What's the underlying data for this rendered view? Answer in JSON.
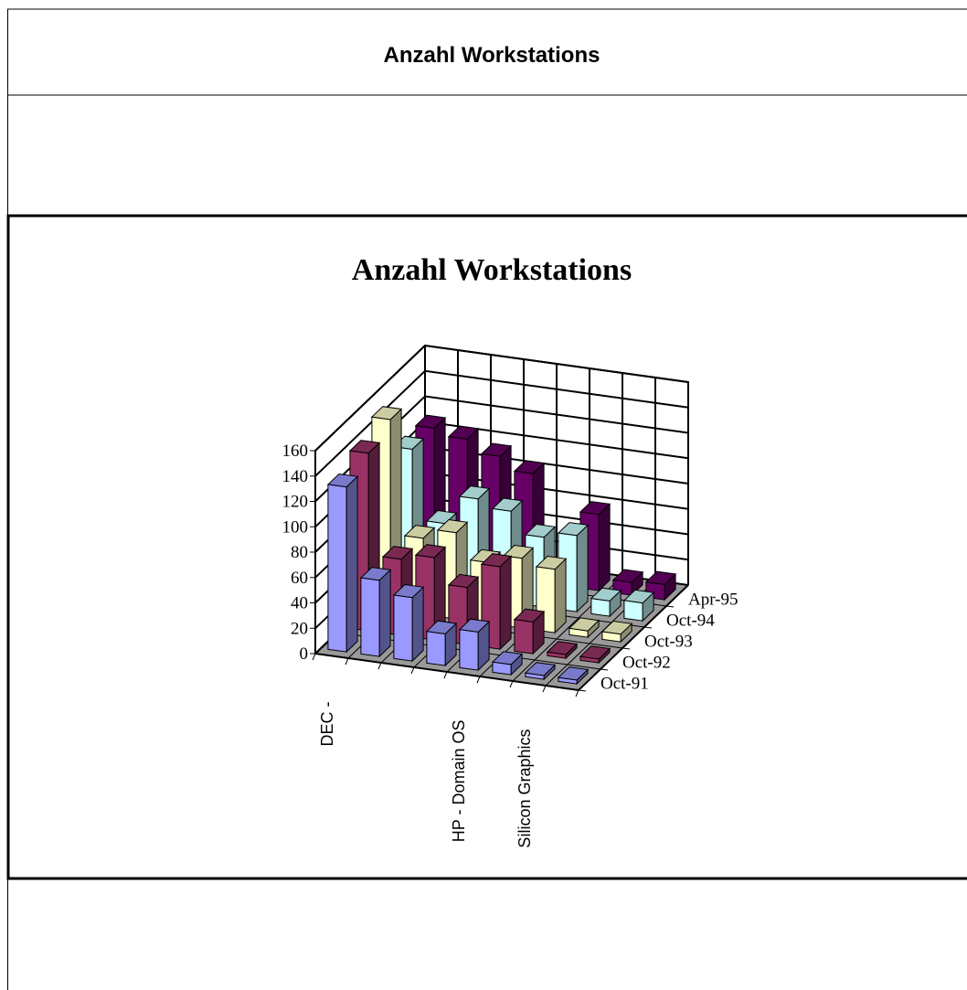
{
  "header": {
    "title": "Anzahl Workstations"
  },
  "chart_data": {
    "type": "bar3d",
    "title": "Anzahl Workstations",
    "categories": [
      "DEC -",
      null,
      null,
      null,
      "HP - Domain OS",
      null,
      "Silicon Graphics",
      null
    ],
    "series": [
      {
        "name": "Oct-91",
        "color": "#9999ff",
        "values": [
          130,
          60,
          50,
          25,
          30,
          8,
          3,
          3
        ]
      },
      {
        "name": "Oct-92",
        "color": "#993366",
        "values": [
          140,
          60,
          65,
          45,
          65,
          25,
          3,
          3
        ]
      },
      {
        "name": "Oct-93",
        "color": "#ffffcc",
        "values": [
          150,
          60,
          68,
          48,
          55,
          50,
          5,
          6
        ]
      },
      {
        "name": "Oct-94",
        "color": "#ccffff",
        "values": [
          110,
          55,
          78,
          72,
          55,
          60,
          12,
          14
        ]
      },
      {
        "name": "Apr-95",
        "color": "#660066",
        "values": [
          110,
          105,
          95,
          85,
          5,
          60,
          10,
          12
        ]
      }
    ],
    "ylim": [
      0,
      160
    ],
    "yticks": [
      0,
      20,
      40,
      60,
      80,
      100,
      120,
      140,
      160
    ],
    "grid": true
  }
}
